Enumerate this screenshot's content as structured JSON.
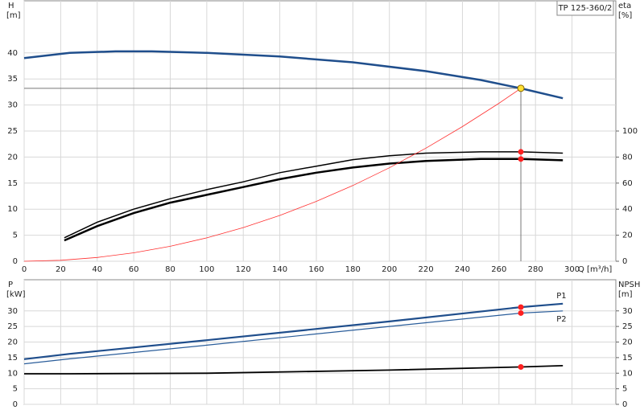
{
  "chart_data": [
    {
      "type": "line",
      "title": "TP 125-360/2",
      "ylabel": "H",
      "yunit": "[m]",
      "y2label": "eta",
      "y2unit": "[%]",
      "xlabel": "Q [m³/h]",
      "xlim": [
        0,
        324
      ],
      "xticks": [
        0,
        20,
        40,
        60,
        80,
        100,
        120,
        140,
        160,
        180,
        200,
        220,
        240,
        260,
        280,
        300
      ],
      "ylim": [
        0,
        50
      ],
      "yticks": [
        0,
        5,
        10,
        15,
        20,
        25,
        30,
        35,
        40
      ],
      "y2lim": [
        0,
        200
      ],
      "y2ticks": [
        0,
        20,
        40,
        60,
        80,
        100
      ],
      "grid": true,
      "series": [
        {
          "color": "#1f4e8c",
          "width": 2.5,
          "x": [
            0,
            25,
            50,
            70,
            100,
            140,
            180,
            220,
            250,
            272,
            295
          ],
          "values": [
            39,
            40,
            40.3,
            40.3,
            40,
            39.3,
            38.2,
            36.5,
            34.8,
            33.2,
            31.3
          ]
        },
        {
          "color": "#000000",
          "width": 1.5,
          "axis": "y2",
          "x": [
            22,
            40,
            60,
            80,
            100,
            120,
            140,
            160,
            180,
            200,
            220,
            250,
            272,
            295
          ],
          "values": [
            18,
            30,
            40,
            48,
            55,
            61,
            68,
            73,
            78,
            81,
            83,
            84,
            84,
            83
          ]
        },
        {
          "color": "#000000",
          "width": 2.5,
          "axis": "y2",
          "x": [
            22,
            40,
            60,
            80,
            100,
            120,
            140,
            160,
            180,
            200,
            220,
            250,
            272,
            295
          ],
          "values": [
            16,
            27,
            37,
            45,
            51,
            57,
            63,
            68,
            72,
            75,
            77,
            78.5,
            78.5,
            77.5
          ]
        },
        {
          "color": "#ff3030",
          "width": 0.8,
          "x": [
            0,
            20,
            40,
            60,
            80,
            100,
            120,
            140,
            160,
            180,
            200,
            220,
            240,
            260,
            272
          ],
          "values": [
            0,
            0.18,
            0.72,
            1.62,
            2.87,
            4.49,
            6.46,
            8.8,
            11.49,
            14.54,
            17.95,
            21.72,
            25.85,
            30.33,
            33.2
          ]
        }
      ],
      "points": [
        {
          "x": 272,
          "y": 33.2,
          "color": "#ffe033",
          "guides": true
        },
        {
          "x": 272,
          "y": 84,
          "axis": "y2",
          "color": "#ff2020"
        },
        {
          "x": 272,
          "y": 78.5,
          "axis": "y2",
          "color": "#ff2020"
        }
      ]
    },
    {
      "type": "line",
      "ylabel": "P",
      "yunit": "[kW]",
      "y2label": "NPSH",
      "y2unit": "[m]",
      "xlim": [
        0,
        324
      ],
      "ylim": [
        0,
        40
      ],
      "yticks": [
        0,
        5,
        10,
        15,
        20,
        25,
        30
      ],
      "y2lim": [
        0,
        40
      ],
      "y2ticks": [
        0,
        5,
        10,
        15,
        20,
        25,
        30
      ],
      "grid": true,
      "series": [
        {
          "name": "P1",
          "color": "#1f4e8c",
          "width": 2.2,
          "x": [
            0,
            25,
            100,
            200,
            272,
            295
          ],
          "values": [
            14.5,
            16.2,
            20.6,
            26.6,
            31.2,
            32.3
          ]
        },
        {
          "name": "P2",
          "color": "#2a5d9a",
          "width": 1.2,
          "x": [
            0,
            25,
            100,
            200,
            272,
            295
          ],
          "values": [
            13,
            14.6,
            19,
            25,
            29.3,
            30
          ]
        },
        {
          "color": "#000000",
          "width": 1.8,
          "axis": "y2",
          "x": [
            0,
            25,
            100,
            200,
            272,
            295
          ],
          "values": [
            9.8,
            9.8,
            10,
            11,
            12,
            12.4
          ]
        }
      ],
      "points": [
        {
          "x": 272,
          "y": 31.2,
          "color": "#ff2020"
        },
        {
          "x": 272,
          "y": 29.3,
          "color": "#ff2020"
        },
        {
          "x": 272,
          "y": 12,
          "axis": "y2",
          "color": "#ff2020"
        }
      ]
    }
  ]
}
